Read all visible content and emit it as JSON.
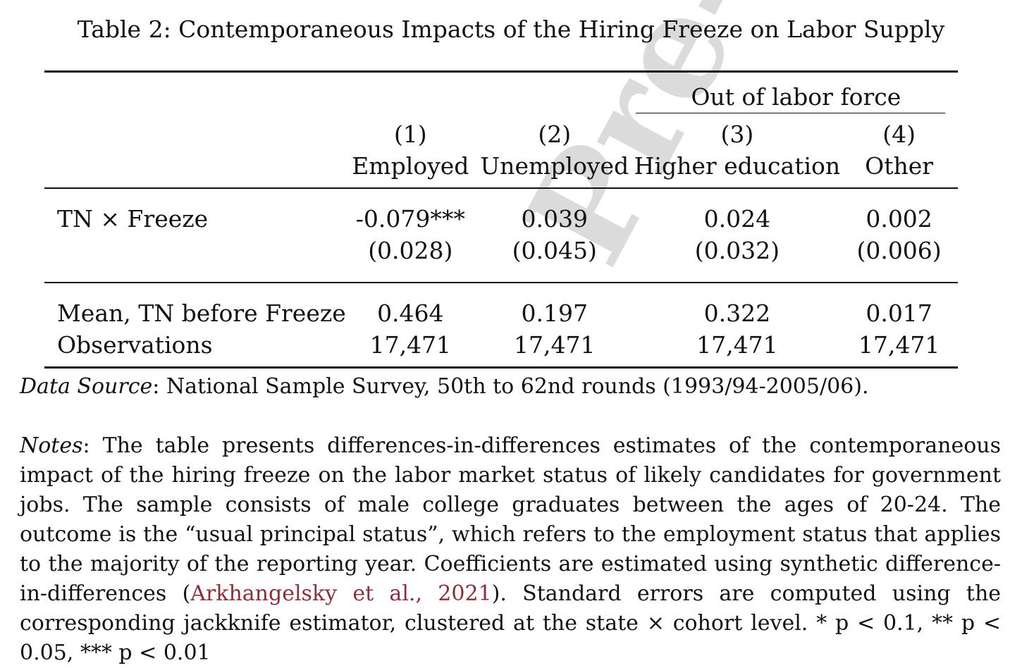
{
  "watermark": "Pre-proof",
  "caption": "Table 2: Contemporaneous Impacts of the Hiring Freeze on Labor Supply",
  "table": {
    "group_header": "Out of labor force",
    "columns": [
      {
        "num": "(1)",
        "label": "Employed"
      },
      {
        "num": "(2)",
        "label": "Unemployed"
      },
      {
        "num": "(3)",
        "label": "Higher education"
      },
      {
        "num": "(4)",
        "label": "Other"
      }
    ],
    "coef_row": {
      "label": "TN × Freeze",
      "estimates": [
        "-0.079***",
        "0.039",
        "0.024",
        "0.002"
      ],
      "std_errors": [
        "(0.028)",
        "(0.045)",
        "(0.032)",
        "(0.006)"
      ]
    },
    "mean_row": {
      "label": "Mean, TN before Freeze",
      "values": [
        "0.464",
        "0.197",
        "0.322",
        "0.017"
      ]
    },
    "obs_row": {
      "label": "Observations",
      "values": [
        "17,471",
        "17,471",
        "17,471",
        "17,471"
      ]
    }
  },
  "source": {
    "label": "Data Source",
    "text": ": National Sample Survey, 50th to 62nd rounds (1993/94-2005/06)."
  },
  "notes": {
    "label": "Notes",
    "text_before": ": The table presents differences-in-differences estimates of the contemporaneous impact of the hiring freeze on the labor market status of likely candidates for government jobs. The sample consists of male college graduates between the ages of 20-24. The outcome is the “usual principal status”, which refers to the employment status that applies to the majority of the reporting year. Coefficients are estimated using synthetic difference-in-differences (",
    "citation": "Arkhangelsky et al., 2021",
    "text_after": "). Standard errors are computed using the corresponding jackknife estimator, clustered at the state × cohort level. * p < 0.1, ** p < 0.05, *** p < 0.01"
  },
  "colors": {
    "citation": "#8b2f3a",
    "watermark": "#cfcfcf"
  }
}
